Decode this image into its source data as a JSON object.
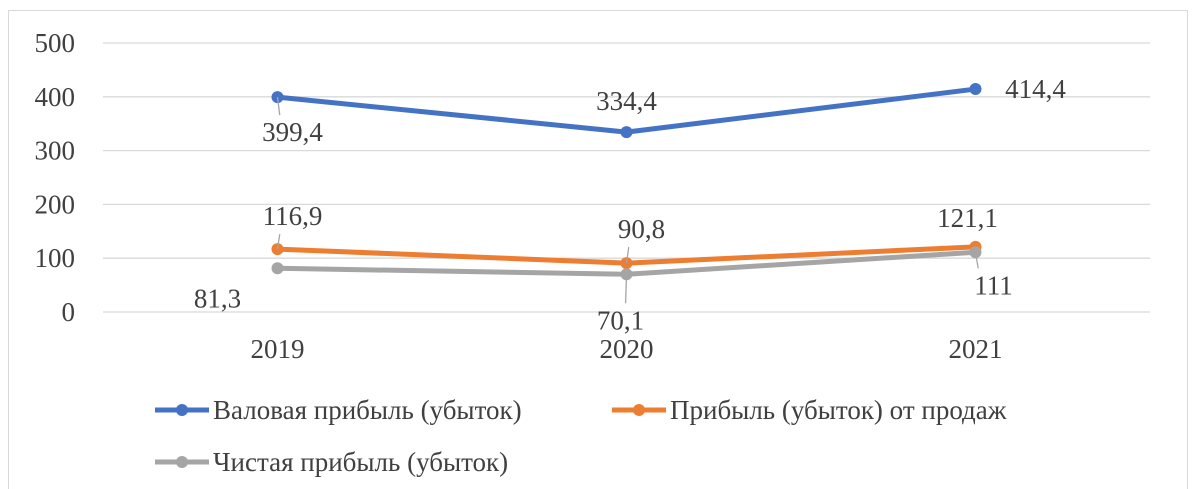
{
  "chart_data": {
    "type": "line",
    "categories": [
      "2019",
      "2020",
      "2021"
    ],
    "ylim": [
      0,
      500
    ],
    "y_ticks": [
      0,
      100,
      200,
      300,
      400,
      500
    ],
    "grid": true,
    "legend_position": "bottom",
    "series": [
      {
        "name": "Валовая прибыль (убыток)",
        "color": "#4472c4",
        "values": [
          399.4,
          334.4,
          414.4
        ],
        "labels": [
          "399,4",
          "334,4",
          "414,4"
        ]
      },
      {
        "name": "Прибыль (убыток) от продаж",
        "color": "#ed7d31",
        "values": [
          116.9,
          90.8,
          121.1
        ],
        "labels": [
          "116,9",
          "90,8",
          "121,1"
        ]
      },
      {
        "name": "Чистая прибыль (убыток)",
        "color": "#a5a5a5",
        "values": [
          81.3,
          70.1,
          111
        ],
        "labels": [
          "81,3",
          "70,1",
          "111"
        ]
      }
    ]
  }
}
